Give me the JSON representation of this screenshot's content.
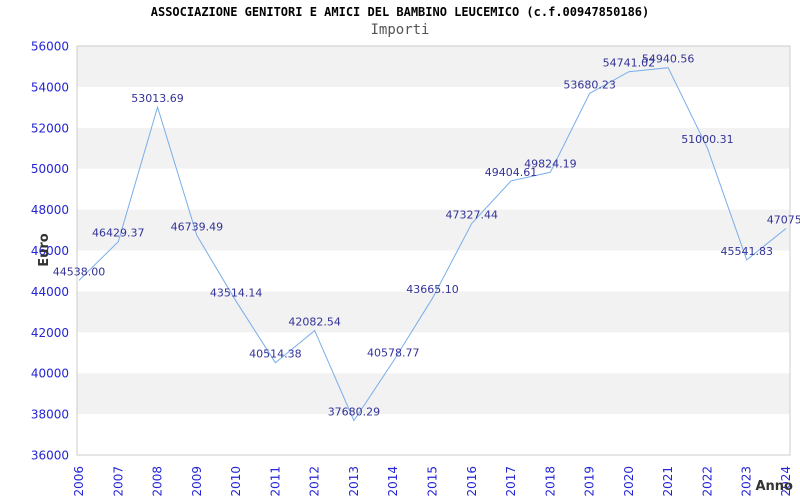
{
  "header": {
    "title": "ASSOCIAZIONE GENITORI E AMICI DEL BAMBINO LEUCEMICO (c.f.00947850186)",
    "subtitle": "Importi"
  },
  "chart_data": {
    "type": "line",
    "title": "Importi",
    "xlabel": "Anno",
    "ylabel": "Euro",
    "categories": [
      "2006",
      "2007",
      "2008",
      "2009",
      "2010",
      "2011",
      "2012",
      "2013",
      "2014",
      "2015",
      "2016",
      "2017",
      "2018",
      "2019",
      "2020",
      "2021",
      "2022",
      "2023",
      "2024"
    ],
    "values": [
      44538.0,
      46429.37,
      53013.69,
      46739.49,
      43514.14,
      40514.38,
      42082.54,
      37680.29,
      40578.77,
      43665.1,
      47327.44,
      49404.61,
      49824.19,
      53680.23,
      54741.02,
      54940.56,
      51000.31,
      45541.83,
      47075.0
    ],
    "point_labels": [
      "44538.00",
      "46429.37",
      "53013.69",
      "46739.49",
      "43514.14",
      "40514.38",
      "42082.54",
      "37680.29",
      "40578.77",
      "43665.10",
      "47327.44",
      "49404.61",
      "49824.19",
      "53680.23",
      "54741.02",
      "54940.56",
      "51000.31",
      "45541.83",
      "47075."
    ],
    "ylim": [
      36000,
      56000
    ],
    "ytick_step": 2000,
    "ytick_labels": [
      "36000",
      "38000",
      "40000",
      "42000",
      "44000",
      "46000",
      "48000",
      "50000",
      "52000",
      "54000",
      "56000"
    ],
    "grid": "alternating-horizontal-bands",
    "legend": "none",
    "colors": {
      "line": "#7aaee8",
      "tick_label": "#2525d5",
      "point_label": "#333399",
      "band": "#f2f2f2",
      "band_alt": "#ffffff",
      "plot_border": "#cccccc",
      "axis_title": "#333333",
      "title": "#000000",
      "subtitle": "#555555"
    }
  }
}
